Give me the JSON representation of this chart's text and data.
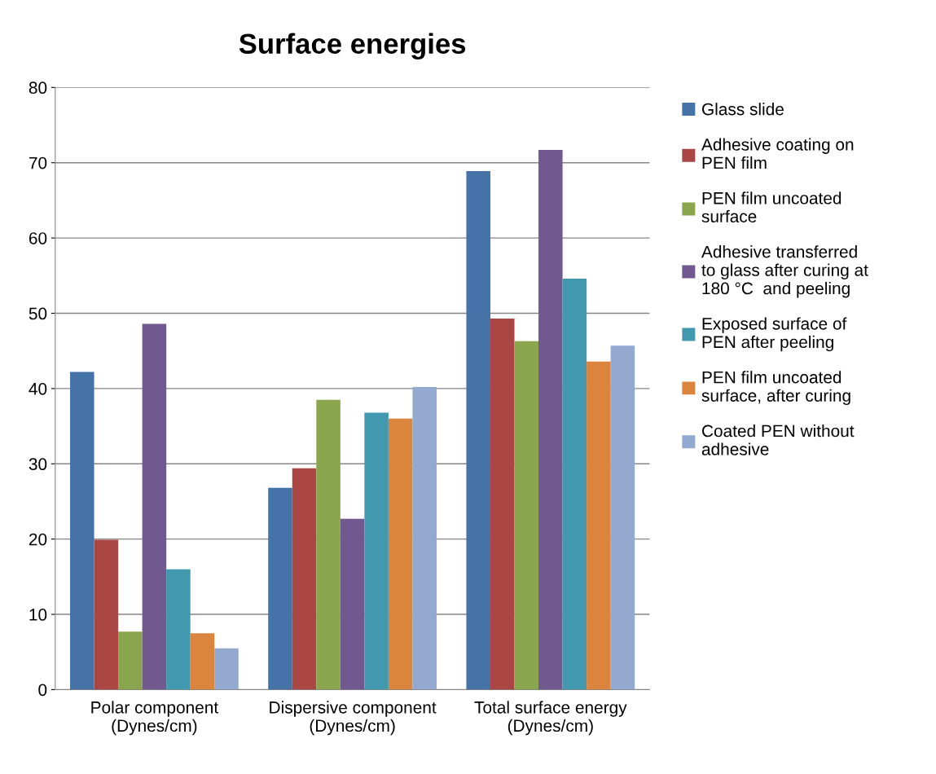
{
  "chart_data": {
    "type": "bar",
    "title": "Surface energies",
    "categories": [
      "Polar component\n(Dynes/cm)",
      "Dispersive component\n(Dynes/cm)",
      "Total surface energy\n(Dynes/cm)"
    ],
    "series": [
      {
        "name": "Glass slide",
        "color": "#4572a7",
        "values": [
          42.2,
          26.8,
          68.9
        ]
      },
      {
        "name": "Adhesive coating on\nPEN film",
        "color": "#aa4643",
        "values": [
          19.9,
          29.4,
          49.3
        ]
      },
      {
        "name": "PEN film uncoated\nsurface",
        "color": "#89a54e",
        "values": [
          7.7,
          38.5,
          46.3
        ]
      },
      {
        "name": "Adhesive transferred\nto glass after curing at\n180 °C  and peeling",
        "color": "#71588f",
        "values": [
          48.6,
          22.7,
          71.7
        ]
      },
      {
        "name": "Exposed surface of\nPEN after peeling",
        "color": "#4198af",
        "values": [
          16.0,
          36.8,
          54.6
        ]
      },
      {
        "name": "PEN film uncoated\nsurface, after curing",
        "color": "#db843d",
        "values": [
          7.5,
          36.0,
          43.6
        ]
      },
      {
        "name": "Coated PEN without\nadhesive",
        "color": "#93a9cf",
        "values": [
          5.5,
          40.2,
          45.7
        ]
      }
    ],
    "ylim": [
      0,
      80
    ],
    "yticks": [
      0,
      10,
      20,
      30,
      40,
      50,
      60,
      70,
      80
    ],
    "grid": "y",
    "legend": "right"
  }
}
